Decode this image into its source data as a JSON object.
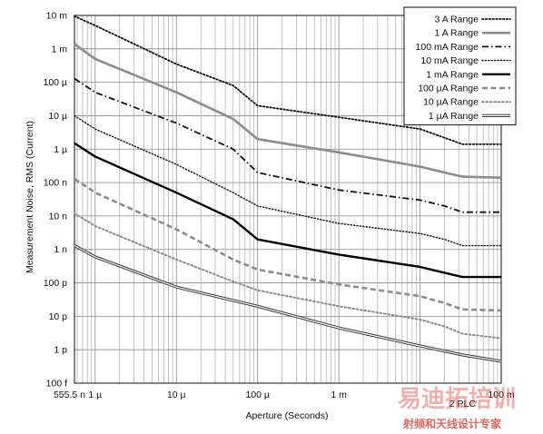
{
  "chart_data": {
    "type": "line",
    "title": "",
    "xlabel": "Aperture (Seconds)",
    "ylabel": "Measurement Noise, RMS (Current)",
    "xscale": "log",
    "yscale": "log",
    "xlim": [
      5.555e-07,
      0.1
    ],
    "ylim": [
      1e-13,
      0.01
    ],
    "grid": true,
    "legend_position": "top-right",
    "x_tick_labels": [
      {
        "value": 5.555e-07,
        "label": "555.5 n"
      },
      {
        "value": 1e-06,
        "label": "1 µ"
      },
      {
        "value": 1e-05,
        "label": "10 µ"
      },
      {
        "value": 0.0001,
        "label": "100 µ"
      },
      {
        "value": 0.001,
        "label": "1 m"
      },
      {
        "value": 0.03333,
        "label": "2 PLC"
      },
      {
        "value": 0.1,
        "label": "100 m"
      }
    ],
    "y_tick_labels": [
      {
        "value": 0.01,
        "label": "10 m"
      },
      {
        "value": 0.001,
        "label": "1 m"
      },
      {
        "value": 0.0001,
        "label": "100 µ"
      },
      {
        "value": 1e-05,
        "label": "10 µ"
      },
      {
        "value": 1e-06,
        "label": "1 µ"
      },
      {
        "value": 1e-07,
        "label": "100 n"
      },
      {
        "value": 1e-08,
        "label": "10 n"
      },
      {
        "value": 1e-09,
        "label": "1 n"
      },
      {
        "value": 1e-10,
        "label": "100 p"
      },
      {
        "value": 1e-11,
        "label": "10 p"
      },
      {
        "value": 1e-12,
        "label": "1 p"
      },
      {
        "value": 1e-13,
        "label": "100 f"
      }
    ],
    "series": [
      {
        "name": "3 A Range",
        "color": "#111111",
        "style": "dotted",
        "x": [
          5.555e-07,
          1e-06,
          1e-05,
          5e-05,
          0.0001,
          0.001,
          0.01,
          0.02,
          0.03333,
          0.1
        ],
        "y": [
          0.0095,
          0.005,
          0.00035,
          8e-05,
          2e-05,
          9e-06,
          4e-06,
          2.2e-06,
          1.4e-06,
          1.4e-06
        ]
      },
      {
        "name": "1 A Range",
        "color": "#8c8c8c",
        "style": "solid-thick",
        "x": [
          5.555e-07,
          1e-06,
          1e-05,
          5e-05,
          0.0001,
          0.001,
          0.01,
          0.02,
          0.03333,
          0.1
        ],
        "y": [
          0.0014,
          0.0005,
          5e-05,
          8e-06,
          2e-06,
          8e-07,
          3e-07,
          2e-07,
          1.5e-07,
          1.4e-07
        ]
      },
      {
        "name": "100 mA Range",
        "color": "#111111",
        "style": "dashdot",
        "x": [
          5.555e-07,
          1e-06,
          1e-05,
          5e-05,
          0.0001,
          0.001,
          0.01,
          0.02,
          0.03333,
          0.1
        ],
        "y": [
          0.00013,
          5e-05,
          6e-06,
          1e-06,
          2e-07,
          6e-08,
          3e-08,
          2e-08,
          1.3e-08,
          1.3e-08
        ]
      },
      {
        "name": "10 mA Range",
        "color": "#111111",
        "style": "dotted-fine",
        "x": [
          5.555e-07,
          1e-06,
          1e-05,
          5e-05,
          0.0001,
          0.001,
          0.01,
          0.02,
          0.03333,
          0.1
        ],
        "y": [
          1e-05,
          4e-06,
          3.5e-07,
          5e-08,
          2e-08,
          6e-09,
          3e-09,
          2e-09,
          1.3e-09,
          1.3e-09
        ]
      },
      {
        "name": "1 mA Range",
        "color": "#000000",
        "style": "solid-bold",
        "x": [
          5.555e-07,
          1e-06,
          1e-05,
          5e-05,
          0.0001,
          0.001,
          0.01,
          0.02,
          0.03333,
          0.1
        ],
        "y": [
          1.5e-06,
          6e-07,
          5e-08,
          8e-09,
          2e-09,
          7e-10,
          3e-10,
          2e-10,
          1.5e-10,
          1.5e-10
        ]
      },
      {
        "name": "100 µA Range",
        "color": "#8c8c8c",
        "style": "dashed-thick",
        "x": [
          5.555e-07,
          1e-06,
          1e-05,
          5e-05,
          0.0001,
          0.001,
          0.01,
          0.02,
          0.03333,
          0.1
        ],
        "y": [
          1.3e-07,
          5e-08,
          4e-09,
          5e-10,
          2.5e-10,
          9e-11,
          4e-11,
          2.5e-11,
          1.6e-11,
          1.5e-11
        ]
      },
      {
        "name": "10 µA Range",
        "color": "#8c8c8c",
        "style": "dotted-gray",
        "x": [
          5.555e-07,
          1e-06,
          1e-05,
          5e-05,
          0.0001,
          0.001,
          0.01,
          0.02,
          0.03333,
          0.1
        ],
        "y": [
          1.2e-08,
          5e-09,
          5e-10,
          1.1e-10,
          6e-11,
          2e-11,
          8e-12,
          5e-12,
          3e-12,
          2.2e-12
        ]
      },
      {
        "name": "1 µA Range",
        "color": "#333333",
        "style": "double",
        "x": [
          5.555e-07,
          1e-06,
          1e-05,
          0.0001,
          0.001,
          0.01,
          0.03333,
          0.1
        ],
        "y": [
          1.3e-09,
          6e-10,
          7.5e-11,
          2e-11,
          4.5e-12,
          1.3e-12,
          7e-13,
          4.5e-13
        ]
      }
    ]
  },
  "watermark": {
    "text_large": "易迪拓培训",
    "text_small": "射频和天线设计专家",
    "color": "#d8352a"
  }
}
